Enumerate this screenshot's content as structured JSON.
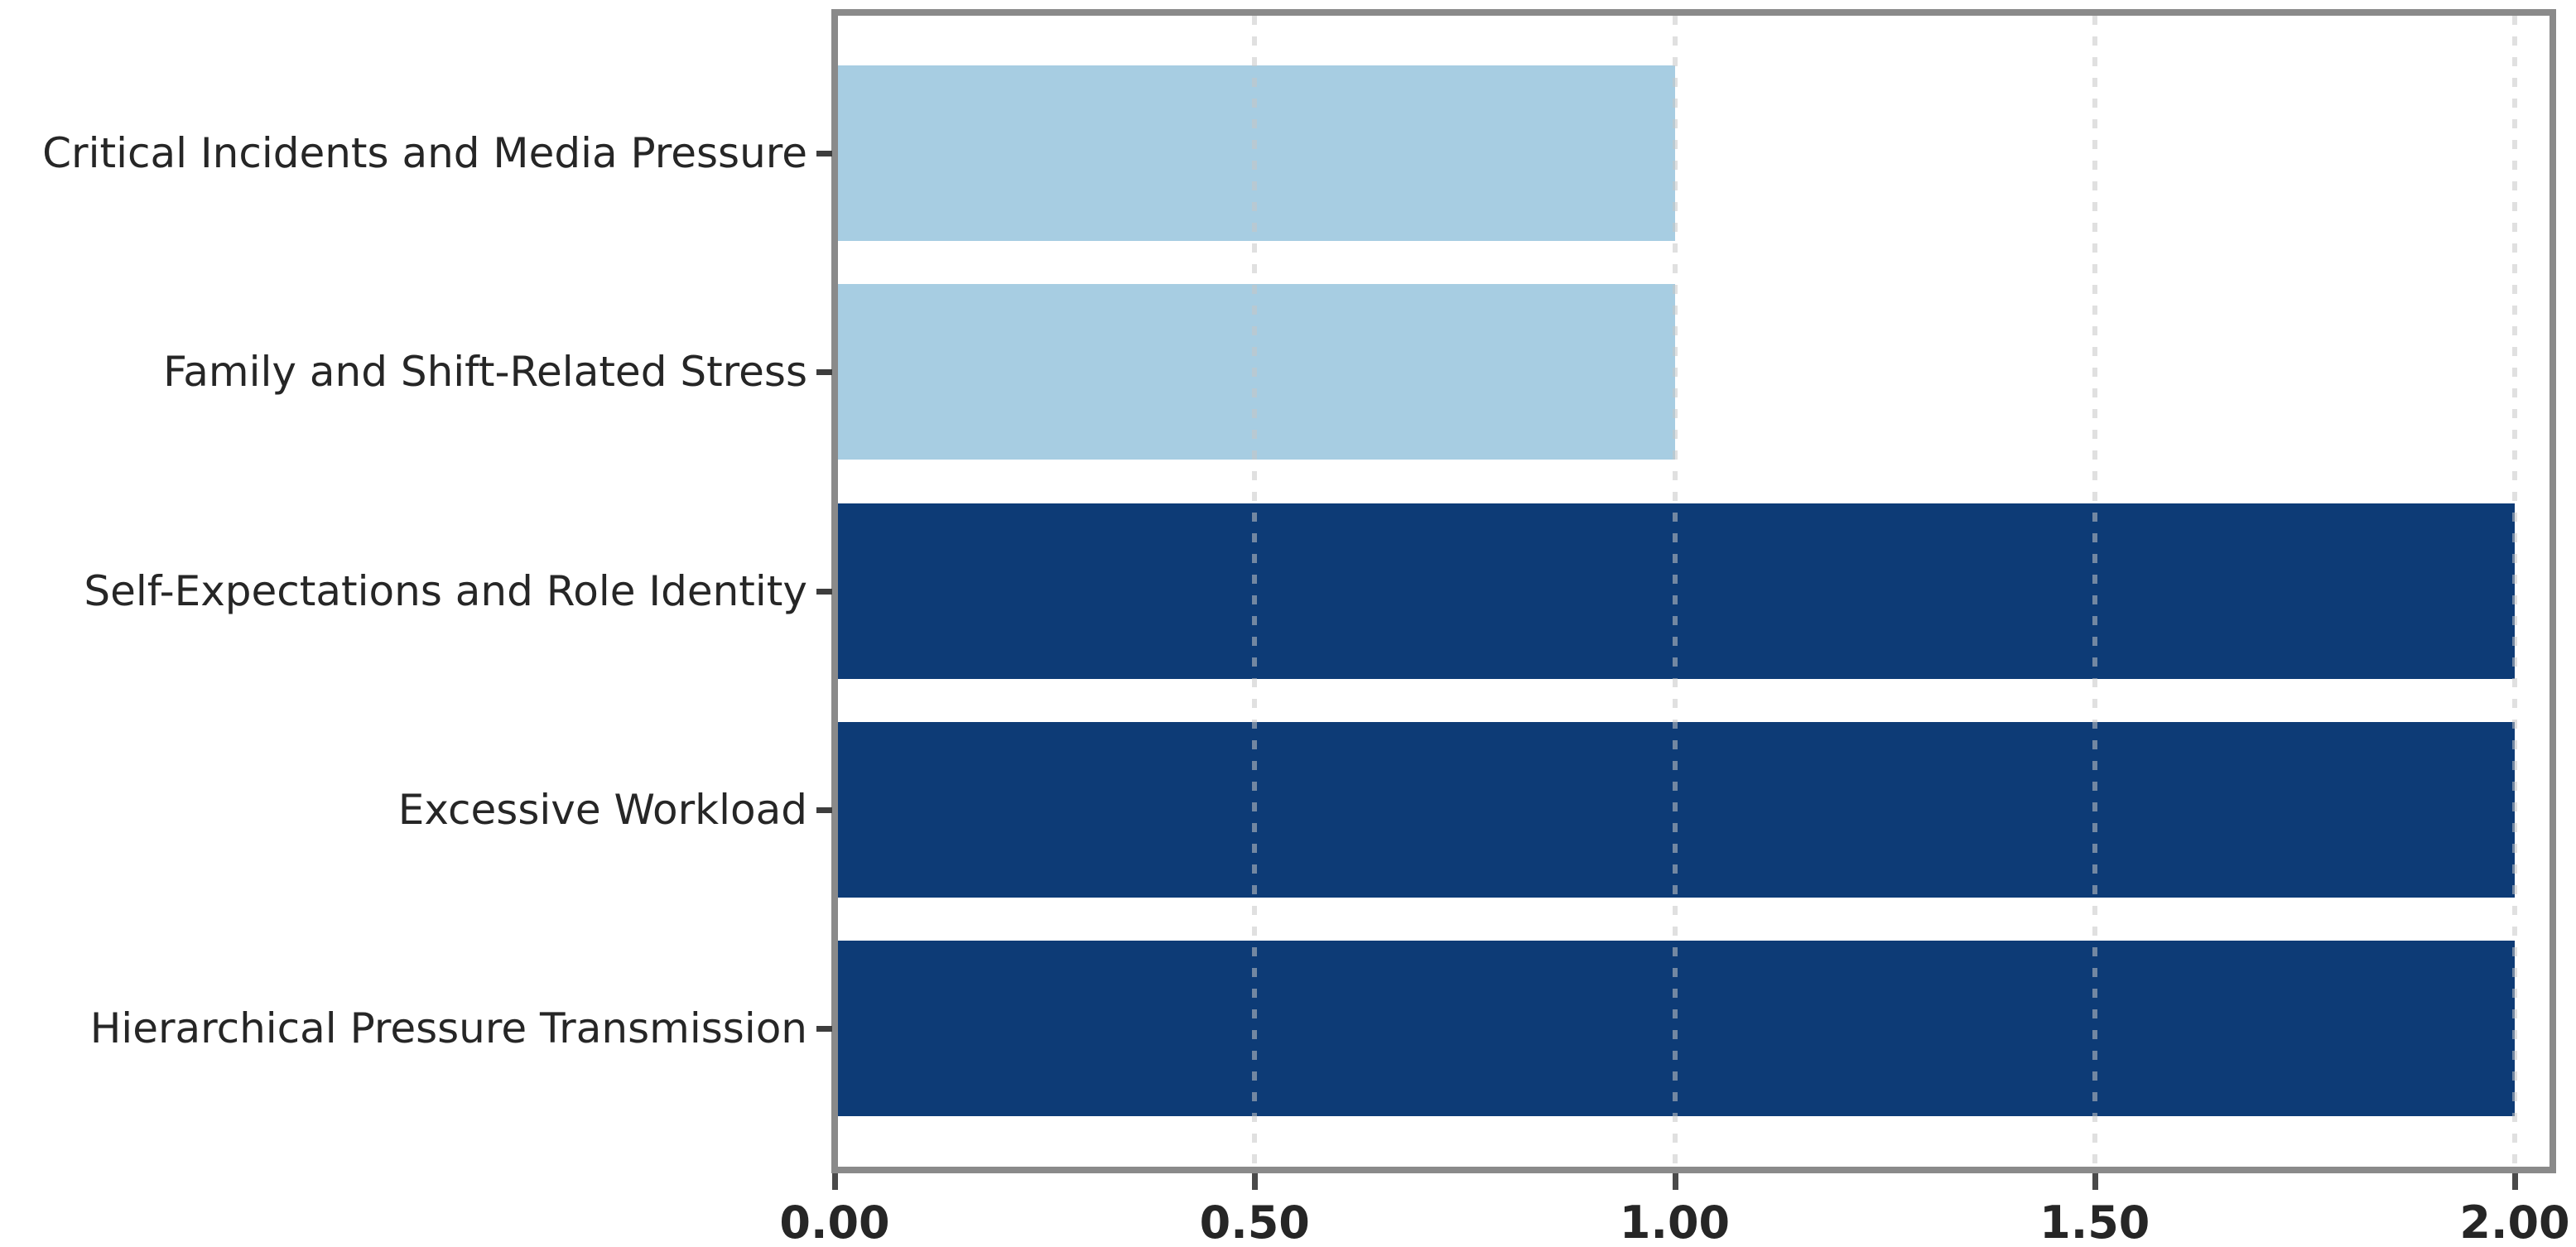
{
  "chart_data": {
    "type": "bar",
    "orientation": "horizontal",
    "title": "",
    "xlabel": "",
    "ylabel": "",
    "categories": [
      "Critical Incidents and Media Pressure",
      "Family and Shift-Related Stress",
      "Self-Expectations and Role Identity",
      "Excessive Workload",
      "Hierarchical Pressure Transmission"
    ],
    "values": [
      1.0,
      1.0,
      2.0,
      2.0,
      2.0
    ],
    "bar_colors": [
      "#a7cde2",
      "#a7cde2",
      "#0d3b76",
      "#0d3b76",
      "#0d3b76"
    ],
    "x_ticks": [
      {
        "value": 0.0,
        "label": "0.00"
      },
      {
        "value": 0.5,
        "label": "0.50"
      },
      {
        "value": 1.0,
        "label": "1.00"
      },
      {
        "value": 1.5,
        "label": "1.50"
      },
      {
        "value": 2.0,
        "label": "2.00"
      }
    ],
    "xlim": [
      0,
      2.045
    ],
    "grid": "vertical-dashed-at-ticks",
    "legend": "none",
    "colors": {
      "light_bar": "#a7cde2",
      "dark_bar": "#0d3b76",
      "spine": "#8a8a8a",
      "tick_mark": "#4a4a4a",
      "text": "#262626",
      "gridline": "rgba(198,198,198,0.55)",
      "background": "#ffffff"
    }
  }
}
